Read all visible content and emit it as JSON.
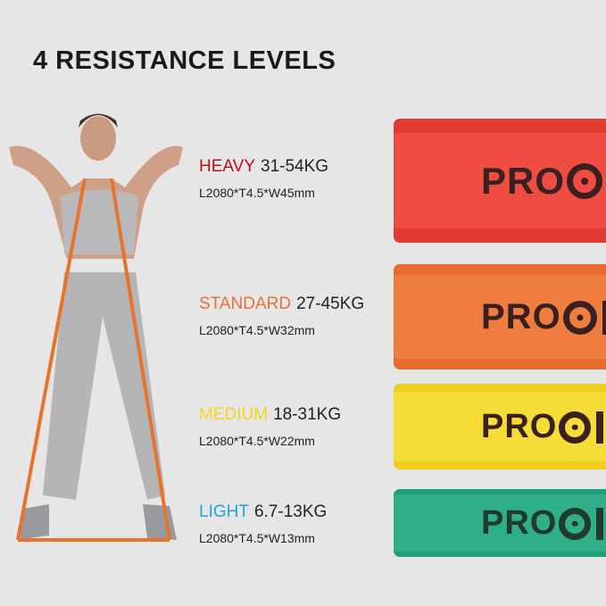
{
  "title": "4 RESISTANCE LEVELS",
  "brand": "PRO",
  "levels": [
    {
      "name": "HEAVY",
      "range": "31-54KG",
      "dims": "L2080*T4.5*W45mm",
      "color": "#b3131c",
      "band": "#e8463c"
    },
    {
      "name": "STANDARD",
      "range": "27-45KG",
      "dims": "L2080*T4.5*W32mm",
      "color": "#e8703a",
      "band": "#ee7a3a"
    },
    {
      "name": "MEDIUM",
      "range": "18-31KG",
      "dims": "L2080*T4.5*W22mm",
      "color": "#f2d61e",
      "band": "#f3d82c"
    },
    {
      "name": "LIGHT",
      "range": "6.7-13KG",
      "dims": "L2080*T4.5*W13mm",
      "color": "#1ea6d0",
      "band": "#2aa782"
    }
  ]
}
